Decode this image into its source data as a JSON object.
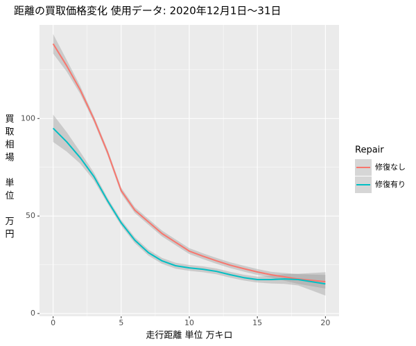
{
  "chart_data": {
    "type": "smooth",
    "title": "距離の買取価格変化 使用データ: 2020年12月1日～31日",
    "xlabel": "走行距離 単位 万キロ",
    "ylabel": "買取相場 単位 万円",
    "legend_title": "Repair",
    "x": [
      0,
      1,
      2,
      3,
      4,
      5,
      6,
      7,
      8,
      9,
      10,
      11,
      12,
      13,
      14,
      15,
      16,
      17,
      18,
      19,
      20
    ],
    "series": [
      {
        "name": "修復なし",
        "color": "#F8766D",
        "values": [
          138.3,
          127,
          114.5,
          99.6,
          82.6,
          63,
          53,
          47,
          41,
          36.5,
          32,
          29.4,
          27,
          24.8,
          23,
          21.3,
          19.9,
          18.8,
          17.7,
          17,
          16.3
        ],
        "lower": [
          133.3,
          124,
          112.5,
          98.1,
          81.1,
          61.5,
          51.5,
          45.5,
          39.5,
          35,
          30.5,
          27.9,
          25.5,
          23.3,
          21.5,
          19.8,
          18.4,
          16.8,
          15.2,
          14,
          12.8
        ],
        "upper": [
          143.3,
          130,
          116.5,
          101.1,
          84.1,
          64.5,
          54.5,
          48.5,
          42.5,
          38,
          33.5,
          30.9,
          28.5,
          26.3,
          24.5,
          22.8,
          21.4,
          20.8,
          20.2,
          20,
          19.8
        ]
      },
      {
        "name": "修復有り",
        "color": "#00BFC4",
        "values": [
          95,
          88,
          79.8,
          70.2,
          57.8,
          46.5,
          37.6,
          31.2,
          27,
          24.5,
          23.4,
          22.7,
          21.6,
          19.9,
          18.4,
          17.4,
          17.4,
          17.7,
          17.4,
          16.3,
          15.2
        ],
        "lower": [
          88,
          83,
          76.8,
          68.2,
          56.3,
          45,
          36.1,
          29.7,
          25.5,
          23,
          21.9,
          21.2,
          20.1,
          18.4,
          16.9,
          15.9,
          15.4,
          15.2,
          14.4,
          11.8,
          9.2
        ],
        "upper": [
          102,
          93,
          82.8,
          72.2,
          59.3,
          48,
          39.1,
          32.7,
          28.5,
          26,
          24.9,
          24.2,
          23.1,
          21.4,
          19.9,
          18.9,
          19.4,
          20.2,
          20.4,
          20.8,
          21.2
        ]
      }
    ],
    "xlim": [
      -1,
      21
    ],
    "xticks": [
      0,
      5,
      10,
      15,
      20
    ],
    "ylim": [
      -1.4,
      148
    ],
    "yticks": [
      0,
      50,
      100
    ],
    "grid": true,
    "band_color": "#999999",
    "panel_color": "#EBEBEB",
    "legend_position": "right"
  }
}
